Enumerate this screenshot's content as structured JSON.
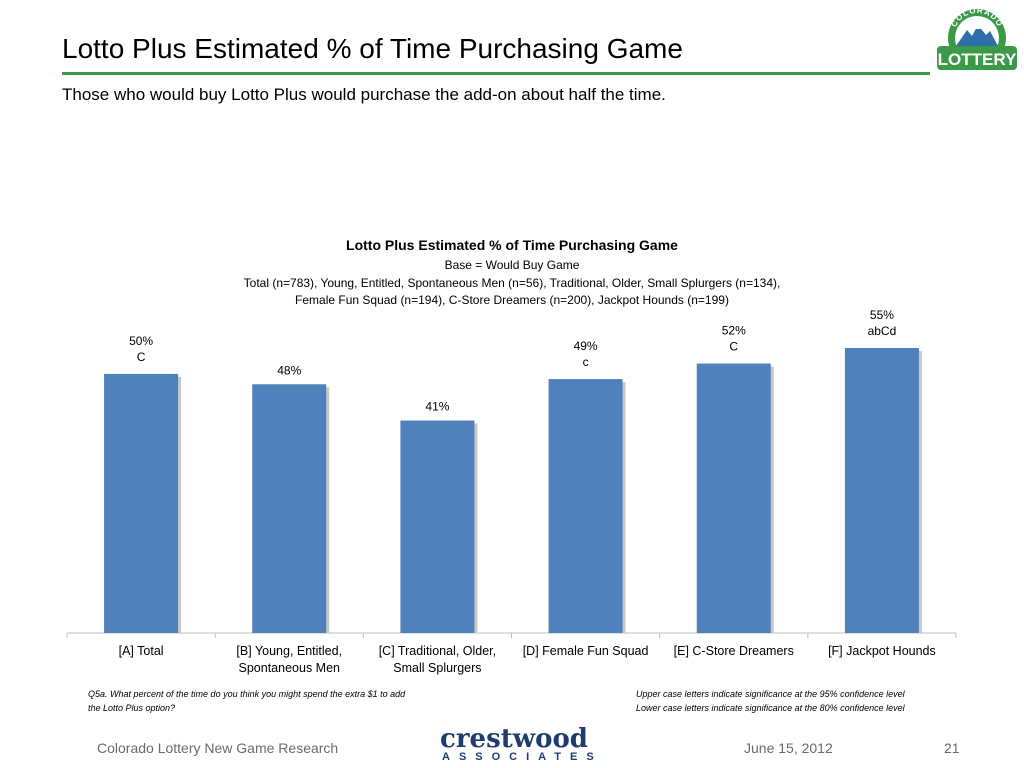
{
  "slide": {
    "title": "Lotto Plus Estimated % of Time Purchasing Game",
    "subtitle": "Those who would buy Lotto Plus would purchase the add-on about half the time."
  },
  "logo": {
    "top_text": "COLORADO",
    "main_text": "LOTTERY"
  },
  "colors": {
    "bar": "#4f81bd",
    "rule": "#3a9a47",
    "brand_navy": "#1e3d6e"
  },
  "chart_data": {
    "type": "bar",
    "title": "Lotto Plus Estimated % of Time Purchasing Game",
    "subtitle_lines": [
      "Base = Would Buy Game",
      "Total (n=783), Young, Entitled, Spontaneous Men (n=56), Traditional, Older, Small Splurgers (n=134),",
      "Female Fun Squad (n=194), C-Store Dreamers (n=200), Jackpot Hounds (n=199)"
    ],
    "categories": [
      [
        "[A] Total"
      ],
      [
        "[B] Young, Entitled,",
        "Spontaneous Men"
      ],
      [
        "[C] Traditional, Older,",
        "Small Splurgers"
      ],
      [
        "[D] Female Fun Squad"
      ],
      [
        "[E] C-Store Dreamers"
      ],
      [
        "[F] Jackpot Hounds"
      ]
    ],
    "values": [
      50,
      48,
      41,
      49,
      52,
      55
    ],
    "value_labels": [
      "50%",
      "48%",
      "41%",
      "49%",
      "52%",
      "55%"
    ],
    "significance": [
      "C",
      "",
      "",
      "c",
      "C",
      "abCd"
    ],
    "ylim": [
      0,
      60
    ],
    "grid": false,
    "legend": "none"
  },
  "footnotes": {
    "question": "Q5a. What percent of the time do you think you might spend the extra $1 to add\nthe Lotto Plus option?",
    "significance_note": "Upper case letters indicate significance at the 95% confidence level\nLower case letters indicate significance at the 80% confidence level"
  },
  "footer": {
    "left": "Colorado Lottery New Game Research",
    "brand_word": "crestwood",
    "brand_sub": "ASSOCIATES",
    "date": "June 15, 2012",
    "page": "21"
  }
}
